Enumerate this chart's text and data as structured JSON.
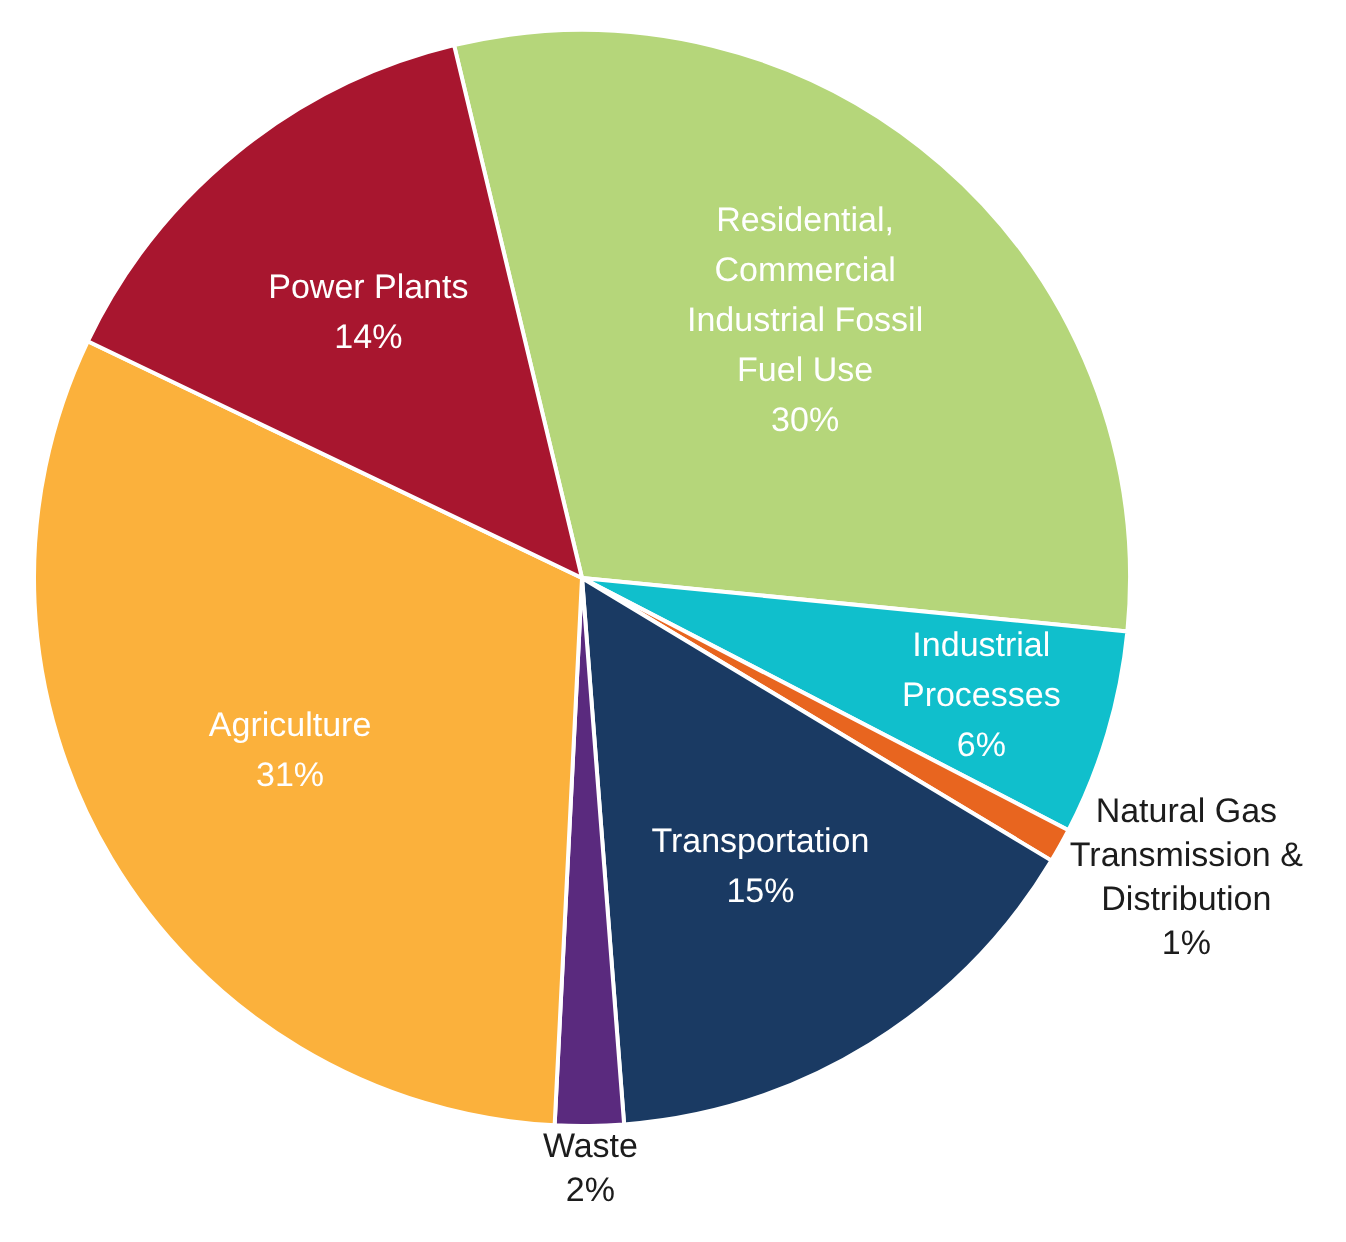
{
  "chart_data": {
    "type": "pie",
    "categories": [
      "Residential, Commercial Industrial Fossil Fuel Use",
      "Industrial Processes",
      "Natural Gas Transmission & Distribution",
      "Transportation",
      "Waste",
      "Agriculture",
      "Power Plants"
    ],
    "values": [
      30,
      6,
      1,
      15,
      2,
      31,
      14
    ],
    "value_labels": [
      "30%",
      "6%",
      "1%",
      "15%",
      "2%",
      "31%",
      "14%"
    ],
    "colors": [
      "#b5d67a",
      "#10bfcc",
      "#e8651f",
      "#1a3a63",
      "#5a2a7e",
      "#fbb13c",
      "#a8162f"
    ],
    "legend": false
  }
}
